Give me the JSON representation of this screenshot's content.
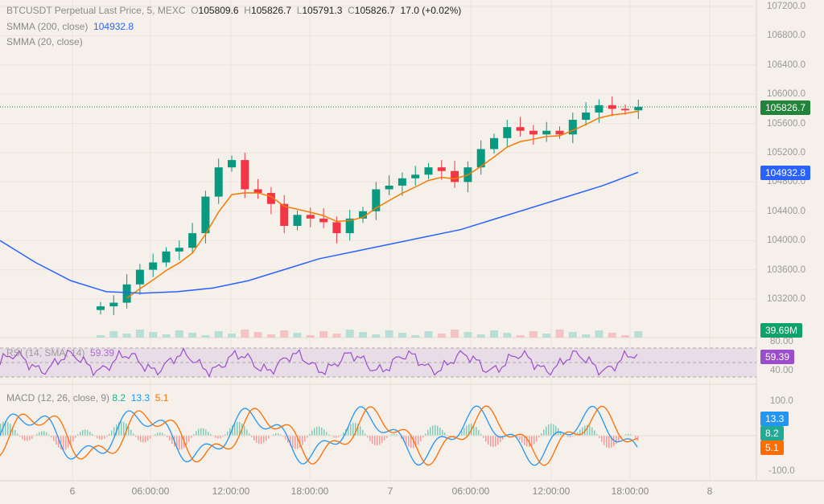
{
  "legend": {
    "symbol": "BTCUSDT Perpetual Last Price, 5, MEXC",
    "o_label": "O",
    "o": "105809.6",
    "h_label": "H",
    "h": "105826.7",
    "l_label": "L",
    "l": "105791.3",
    "c_label": "C",
    "c": "105826.7",
    "change": "17.0 (+0.02%)",
    "smma200_label": "SMMA (200, close)",
    "smma200_value": "104932.8",
    "smma20_label": "SMMA (20, close)",
    "rsi_label": "RSI (14, SMA, 14)",
    "rsi_value": "59.39",
    "macd_label": "MACD (12, 26, close, 9)",
    "macd_hist": "8.2",
    "macd_line": "13.3",
    "macd_signal": "5.1"
  },
  "price_axis": [
    "107200.0",
    "106800.0",
    "106400.0",
    "106000.0",
    "105600.0",
    "105200.0",
    "104800.0",
    "104400.0",
    "104000.0",
    "103600.0",
    "103200.0"
  ],
  "rsi_axis": [
    "80.00",
    "40.00"
  ],
  "macd_axis": [
    "100.0",
    "-100.0"
  ],
  "tags": {
    "price": "105826.7",
    "smma200": "104932.8",
    "volume": "39.69M",
    "rsi": "59.39",
    "macd": "13.3",
    "hist": "8.2",
    "signal": "5.1"
  },
  "time_axis": [
    "6",
    "06:00:00",
    "12:00:00",
    "18:00:00",
    "7",
    "06:00:00",
    "12:00:00",
    "18:00:00",
    "8"
  ],
  "colors": {
    "up": "#089981",
    "down": "#f23645",
    "smma200": "#2962ff",
    "smma20": "#f57c00",
    "rsi": "#9c4dcc",
    "macd": "#2196f3",
    "signal": "#ff6d00",
    "background": "#f5f0ea"
  },
  "chart_data": {
    "type": "candlestick",
    "interval": "1h approx (source 5m)",
    "start": "6 02:00",
    "ylim": [
      102900,
      107300
    ],
    "closes": [
      103100,
      103150,
      103400,
      103600,
      103700,
      103850,
      103900,
      104100,
      104600,
      105000,
      105100,
      104700,
      104650,
      104500,
      104200,
      104350,
      104300,
      104250,
      104100,
      104300,
      104400,
      104700,
      104750,
      104850,
      104900,
      105000,
      104950,
      104800,
      105000,
      105250,
      105400,
      105550,
      105500,
      105450,
      105500,
      105450,
      105650,
      105750,
      105850,
      105800,
      105780,
      105826.7
    ],
    "smma200": [
      104000,
      103700,
      103450,
      103300,
      103280,
      103300,
      103350,
      103450,
      103600,
      103750,
      103850,
      103950,
      104050,
      104150,
      104300,
      104450,
      104600,
      104750,
      104932.8
    ],
    "last_price": 105826.7,
    "volume_last": "39.69M",
    "rsi_last": 59.39,
    "macd_last": 13.3,
    "signal_last": 5.1,
    "hist_last": 8.2
  }
}
